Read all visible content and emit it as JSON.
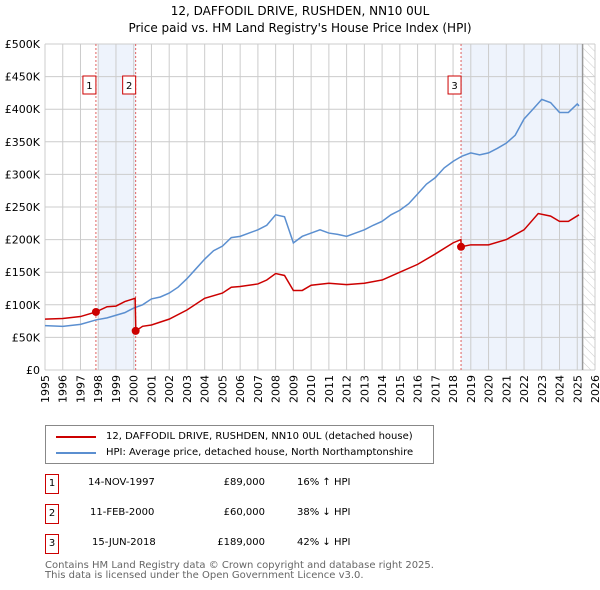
{
  "title": "12, DAFFODIL DRIVE, RUSHDEN, NN10 0UL",
  "subtitle": "Price paid vs. HM Land Registry's House Price Index (HPI)",
  "chart_data": {
    "type": "line",
    "ylim": [
      0,
      500000
    ],
    "xlim": [
      1995,
      2026
    ],
    "yticks": [
      {
        "v": 0,
        "label": "£0"
      },
      {
        "v": 50000,
        "label": "£50K"
      },
      {
        "v": 100000,
        "label": "£100K"
      },
      {
        "v": 150000,
        "label": "£150K"
      },
      {
        "v": 200000,
        "label": "£200K"
      },
      {
        "v": 250000,
        "label": "£250K"
      },
      {
        "v": 300000,
        "label": "£300K"
      },
      {
        "v": 350000,
        "label": "£350K"
      },
      {
        "v": 400000,
        "label": "£400K"
      },
      {
        "v": 450000,
        "label": "£450K"
      },
      {
        "v": 500000,
        "label": "£500K"
      }
    ],
    "xticks": [
      "1995",
      "1996",
      "1997",
      "1998",
      "1999",
      "2000",
      "2001",
      "2002",
      "2003",
      "2004",
      "2005",
      "2006",
      "2007",
      "2008",
      "2009",
      "2010",
      "2011",
      "2012",
      "2013",
      "2014",
      "2015",
      "2016",
      "2017",
      "2018",
      "2019",
      "2020",
      "2021",
      "2022",
      "2023",
      "2024",
      "2025",
      "2026"
    ],
    "series": [
      {
        "name": "12, DAFFODIL DRIVE, RUSHDEN, NN10 0UL (detached house)",
        "color": "#cc0000",
        "x": [
          1995,
          1996,
          1997,
          1997.87,
          1998.5,
          1999,
          1999.5,
          2000.08,
          2000.12,
          2000.5,
          2001,
          2002,
          2003,
          2004,
          2005,
          2005.5,
          2006,
          2007,
          2007.5,
          2008,
          2008.5,
          2009,
          2009.5,
          2010,
          2011,
          2012,
          2013,
          2014,
          2015,
          2016,
          2017,
          2018,
          2018.44,
          2018.46,
          2019,
          2020,
          2021,
          2022,
          2022.8,
          2023.5,
          2024,
          2024.5,
          2025.1
        ],
        "y": [
          78000,
          79000,
          82000,
          89000,
          97000,
          98000,
          105000,
          110000,
          60000,
          67000,
          69000,
          78000,
          92000,
          110000,
          118000,
          127000,
          128000,
          132000,
          138000,
          148000,
          145000,
          122000,
          122000,
          130000,
          133000,
          131000,
          133000,
          138000,
          150000,
          162000,
          178000,
          195000,
          200000,
          189000,
          192000,
          192000,
          200000,
          215000,
          240000,
          236000,
          228000,
          228000,
          238000
        ]
      },
      {
        "name": "HPI: Average price, detached house, North Northamptonshire",
        "color": "#5b8fd0",
        "x": [
          1995,
          1996,
          1997,
          1997.9,
          1998.5,
          1999,
          1999.5,
          2000,
          2000.5,
          2001,
          2001.5,
          2002,
          2002.5,
          2003,
          2003.5,
          2004,
          2004.5,
          2005,
          2005.5,
          2006,
          2006.5,
          2007,
          2007.5,
          2008,
          2008.5,
          2009,
          2009.5,
          2010,
          2010.5,
          2011,
          2011.5,
          2012,
          2012.5,
          2013,
          2013.5,
          2014,
          2014.5,
          2015,
          2015.5,
          2016,
          2016.5,
          2017,
          2017.5,
          2018,
          2018.5,
          2019,
          2019.5,
          2020,
          2020.5,
          2021,
          2021.5,
          2022,
          2022.5,
          2023,
          2023.5,
          2024,
          2024.5,
          2025,
          2025.1
        ],
        "y": [
          68000,
          67000,
          70000,
          77000,
          80000,
          84000,
          88000,
          95000,
          100000,
          109000,
          112000,
          118000,
          127000,
          140000,
          155000,
          170000,
          183000,
          190000,
          203000,
          205000,
          210000,
          215000,
          222000,
          238000,
          235000,
          195000,
          205000,
          210000,
          215000,
          210000,
          208000,
          205000,
          210000,
          215000,
          222000,
          228000,
          238000,
          245000,
          255000,
          270000,
          285000,
          295000,
          310000,
          320000,
          328000,
          333000,
          330000,
          333000,
          340000,
          348000,
          360000,
          385000,
          400000,
          415000,
          410000,
          395000,
          395000,
          408000,
          405000
        ]
      }
    ],
    "sales": [
      {
        "n": "1",
        "x": 1997.87,
        "y": 89000
      },
      {
        "n": "2",
        "x": 2000.11,
        "y": 60000
      },
      {
        "n": "3",
        "x": 2018.45,
        "y": 189000
      }
    ]
  },
  "legend": [
    "12, DAFFODIL DRIVE, RUSHDEN, NN10 0UL (detached house)",
    "HPI: Average price, detached house, North Northamptonshire"
  ],
  "transactions": [
    {
      "n": "1",
      "date": "14-NOV-1997",
      "price": "£89,000",
      "hpi": "16% ↑ HPI"
    },
    {
      "n": "2",
      "date": "11-FEB-2000",
      "price": "£60,000",
      "hpi": "38% ↓ HPI"
    },
    {
      "n": "3",
      "date": "15-JUN-2018",
      "price": "£189,000",
      "hpi": "42% ↓ HPI"
    }
  ],
  "footer": [
    "Contains HM Land Registry data © Crown copyright and database right 2025.",
    "This data is licensed under the Open Government Licence v3.0."
  ]
}
